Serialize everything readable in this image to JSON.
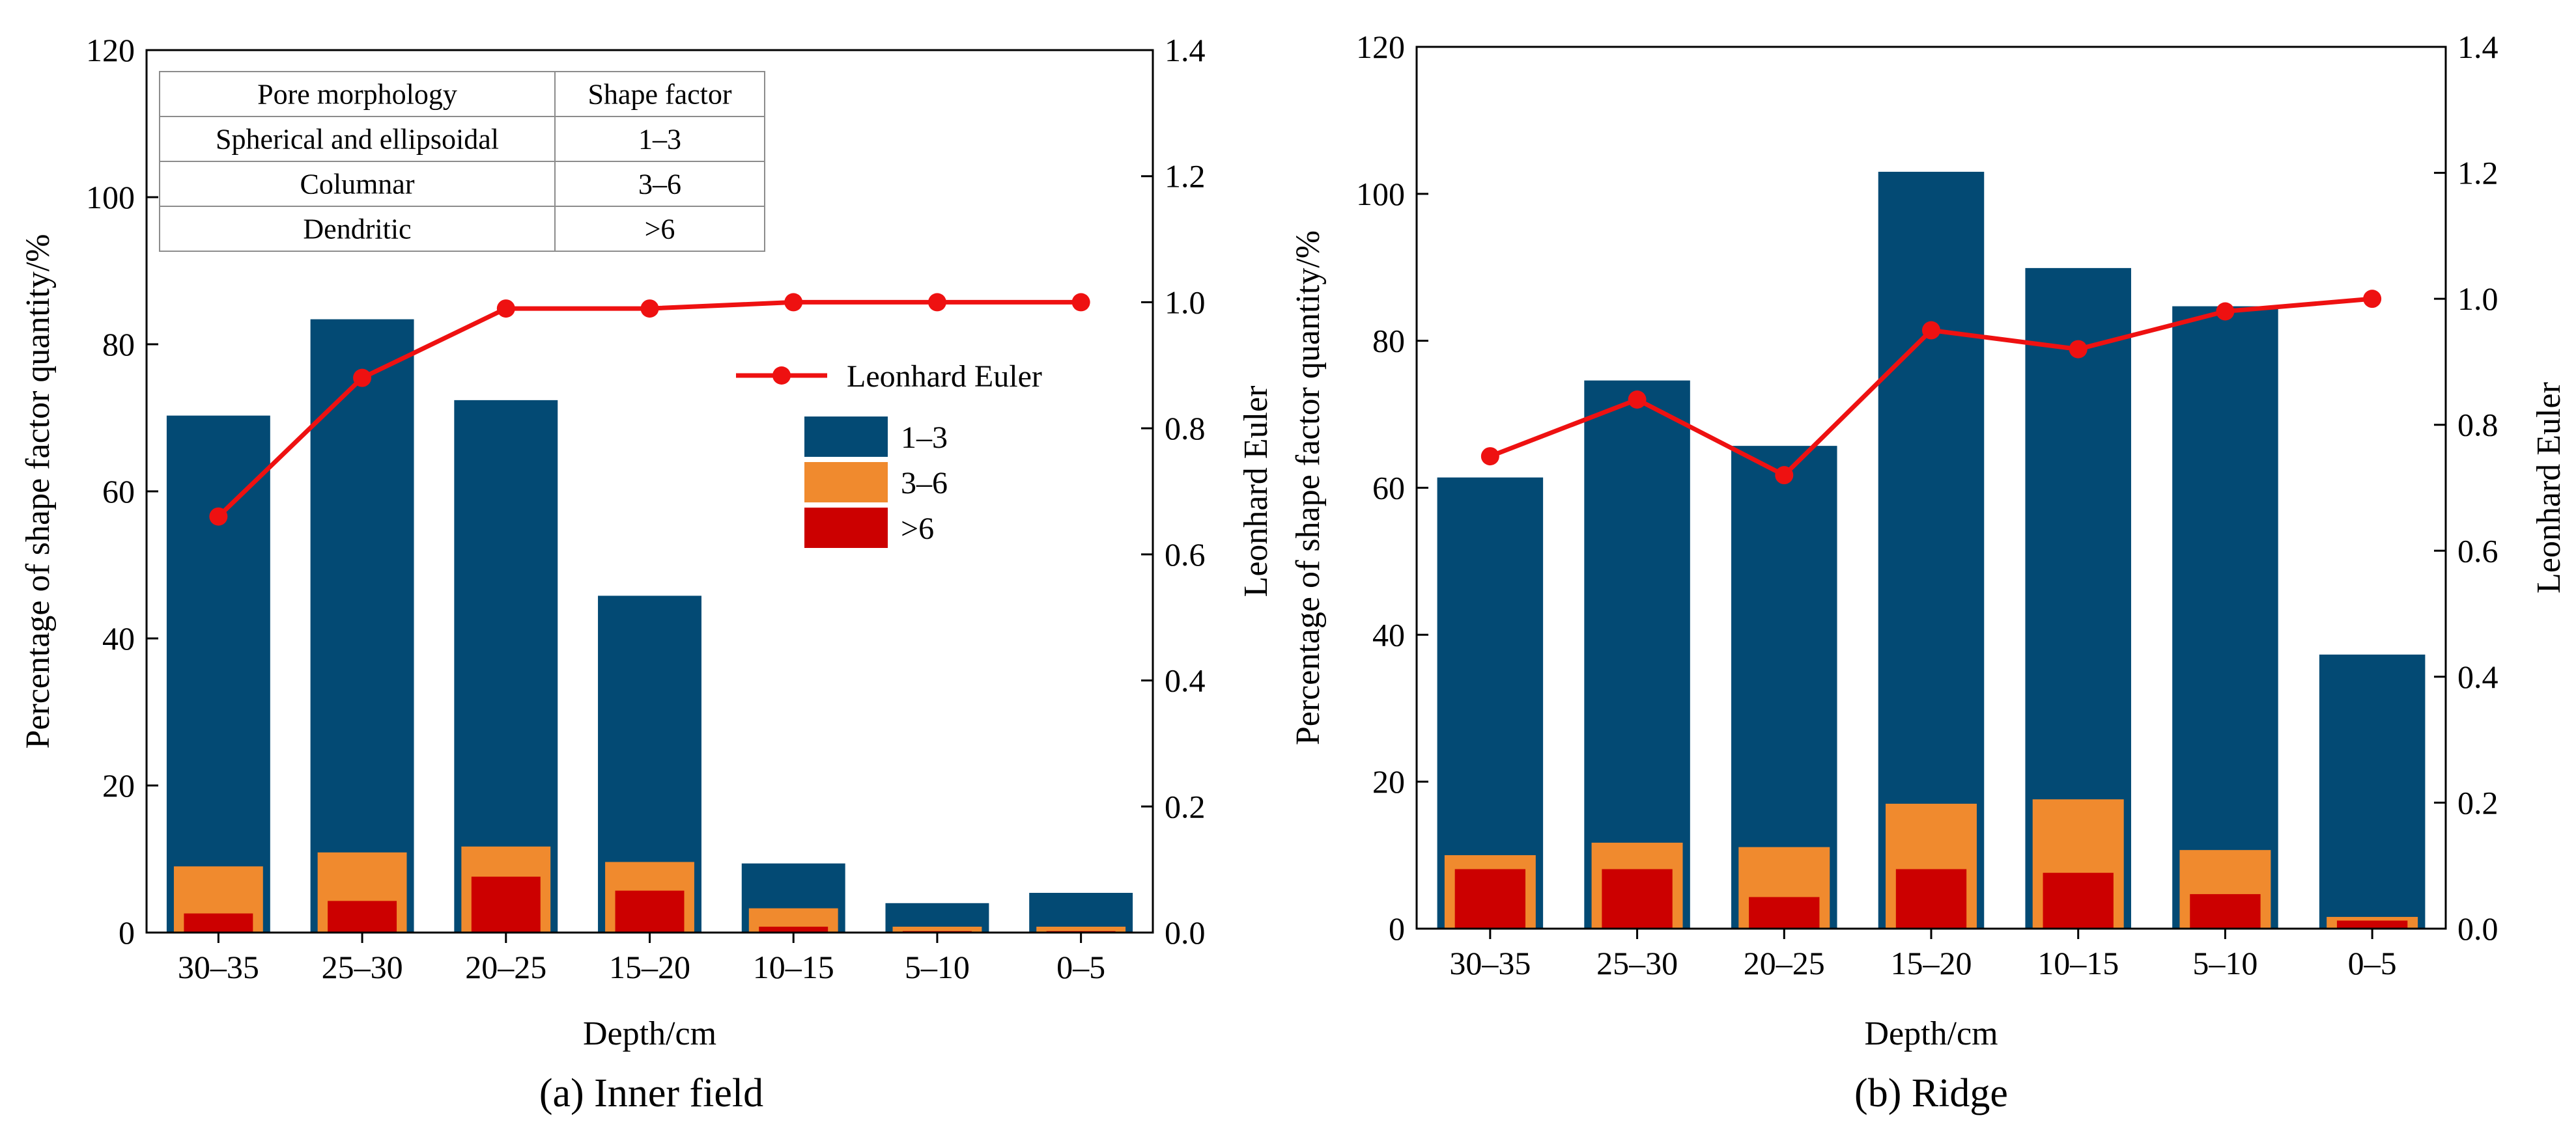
{
  "colors": {
    "series_1_3": "#034a74",
    "series_3_6": "#f08a2e",
    "series_gt6": "#cc0000",
    "euler": "#ee1111"
  },
  "chart_data": [
    {
      "type": "bar",
      "caption": "(a) Inner field",
      "xlabel": "Depth/cm",
      "ylabel": "Percentage of shape factor quantity/%",
      "y2label": "Leonhard Euler",
      "ylim": [
        0,
        120
      ],
      "y2lim": [
        0,
        1.4
      ],
      "yticks": [
        "0",
        "20",
        "40",
        "60",
        "80",
        "100",
        "120"
      ],
      "y2ticks": [
        "0.0",
        "0.2",
        "0.4",
        "0.6",
        "0.8",
        "1.0",
        "1.2",
        "1.4"
      ],
      "categories": [
        "30–35",
        "25–30",
        "20–25",
        "15–20",
        "10–15",
        "5–10",
        "0–5"
      ],
      "series": [
        {
          "name": "1–3",
          "values": [
            70.3,
            83.4,
            72.4,
            45.8,
            9.4,
            4.0,
            5.4
          ]
        },
        {
          "name": "3–6",
          "values": [
            9.0,
            10.9,
            11.7,
            9.6,
            3.3,
            0.8,
            0.8
          ]
        },
        {
          "name": ">6",
          "values": [
            2.6,
            4.3,
            7.6,
            5.7,
            0.8,
            0.2,
            0.2
          ]
        }
      ],
      "line": {
        "name": "Leonhard Euler",
        "values": [
          0.66,
          0.88,
          0.99,
          0.99,
          1.0,
          1.0,
          1.0
        ]
      },
      "legend": {
        "line_label": "Leonhard Euler",
        "bar_labels": [
          "1–3",
          "3–6",
          ">6"
        ]
      },
      "table": {
        "headers": [
          "Pore morphology",
          "Shape factor"
        ],
        "rows": [
          [
            "Spherical and ellipsoidal",
            "1–3"
          ],
          [
            "Columnar",
            "3–6"
          ],
          [
            "Dendritic",
            ">6"
          ]
        ]
      }
    },
    {
      "type": "bar",
      "caption": "(b) Ridge",
      "xlabel": "Depth/cm",
      "ylabel": "Percentage of shape factor quantity/%",
      "y2label": "Leonhard Euler",
      "ylim": [
        0,
        120
      ],
      "y2lim": [
        0,
        1.4
      ],
      "yticks": [
        "0",
        "20",
        "40",
        "60",
        "80",
        "100",
        "120"
      ],
      "y2ticks": [
        "0.0",
        "0.2",
        "0.4",
        "0.6",
        "0.8",
        "1.0",
        "1.2",
        "1.4"
      ],
      "categories": [
        "30–35",
        "25–30",
        "20–25",
        "15–20",
        "10–15",
        "5–10",
        "0–5"
      ],
      "series": [
        {
          "name": "1–3",
          "values": [
            61.4,
            74.6,
            65.7,
            103.0,
            89.9,
            84.7,
            37.3
          ]
        },
        {
          "name": "3–6",
          "values": [
            10.0,
            11.7,
            11.1,
            17.0,
            17.6,
            10.7,
            1.6
          ]
        },
        {
          "name": ">6",
          "values": [
            8.1,
            8.1,
            4.3,
            8.1,
            7.6,
            4.7,
            1.1
          ]
        }
      ],
      "line": {
        "name": "Leonhard Euler",
        "values": [
          0.75,
          0.84,
          0.72,
          0.95,
          0.92,
          0.98,
          1.0
        ]
      }
    }
  ]
}
